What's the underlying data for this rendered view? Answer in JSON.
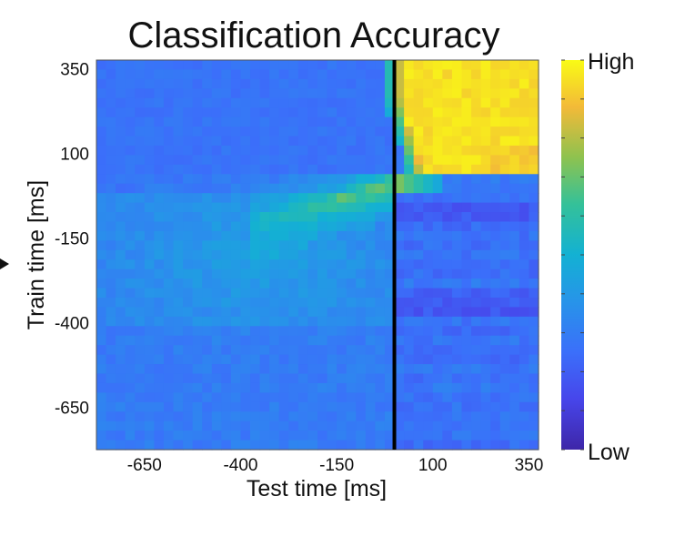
{
  "chart_data": {
    "type": "heatmap",
    "title": "Classification Accuracy",
    "xlabel": "Test time [ms]",
    "ylabel": "Train time [ms]",
    "x_range": [
      -775,
      375
    ],
    "y_range": [
      -775,
      375
    ],
    "x_ticks": [
      -650,
      -400,
      -150,
      100,
      350
    ],
    "y_ticks": [
      350,
      100,
      -150,
      -400,
      -650
    ],
    "vertical_marker_x": 0,
    "colorbar": {
      "top_label": "High",
      "bottom_label": "Low",
      "colormap": "parula"
    },
    "description_of_pattern": [
      {
        "region": "test > 0 and train > 0",
        "level": "high"
      },
      {
        "region": "diagonal near train = 0, test = -100..0",
        "level": "medium-high"
      },
      {
        "region": "elsewhere",
        "level": "low"
      }
    ]
  }
}
